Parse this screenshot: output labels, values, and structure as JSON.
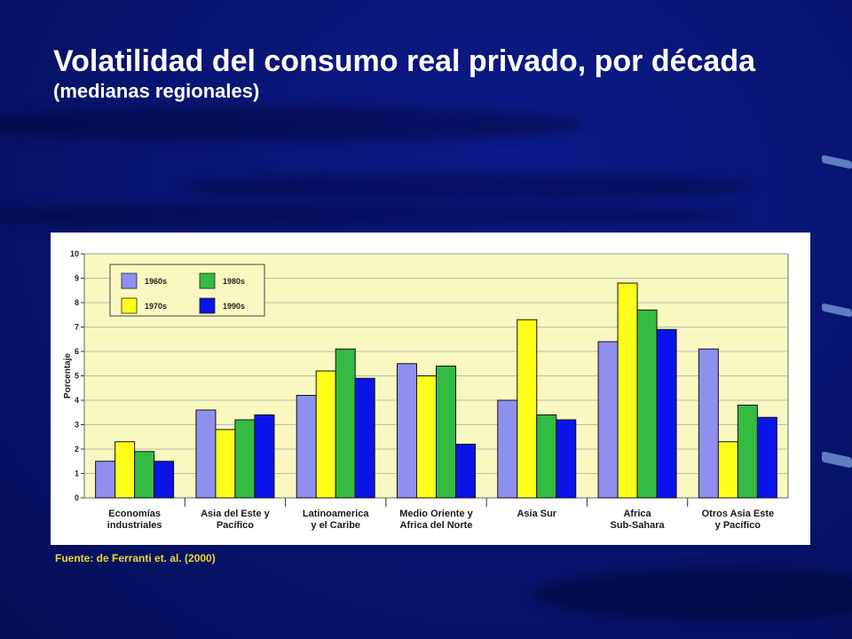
{
  "slide": {
    "title": "Volatilidad del consumo real privado, por década",
    "subtitle": "(medianas regionales)",
    "source": "Fuente: de Ferranti et. al. (2000)"
  },
  "colors": {
    "background": "#081470",
    "plot_area": "#f8f8c0",
    "1960s": "#8f8ff0",
    "1970s": "#ffff1a",
    "1980s": "#33bb44",
    "1990s": "#0a14e8"
  },
  "chart_data": {
    "type": "bar",
    "title": "",
    "xlabel": "",
    "ylabel": "Porcentaje",
    "ylim": [
      0,
      10
    ],
    "yticks": [
      0,
      1,
      2,
      3,
      4,
      5,
      6,
      7,
      8,
      9,
      10
    ],
    "grid": true,
    "legend_position": "top-left",
    "categories": [
      [
        "Economías",
        "industriales"
      ],
      [
        "Asia del Este  y",
        "Pacífico"
      ],
      [
        "Latinoamerica",
        "y el Caribe"
      ],
      [
        "Medio Oriente y",
        "Africa del Norte"
      ],
      [
        "Asia Sur"
      ],
      [
        "Africa",
        "Sub-Sahara"
      ],
      [
        "Otros Asia Este",
        "y Pacífico"
      ]
    ],
    "series": [
      {
        "name": "1960s",
        "values": [
          1.5,
          3.6,
          4.2,
          5.5,
          4.0,
          6.4,
          6.1
        ]
      },
      {
        "name": "1970s",
        "values": [
          2.3,
          2.8,
          5.2,
          5.0,
          7.3,
          8.8,
          2.3
        ]
      },
      {
        "name": "1980s",
        "values": [
          1.9,
          3.2,
          6.1,
          5.4,
          3.4,
          7.7,
          3.8
        ]
      },
      {
        "name": "1990s",
        "values": [
          1.5,
          3.4,
          4.9,
          2.2,
          3.2,
          6.9,
          3.3
        ]
      }
    ]
  }
}
